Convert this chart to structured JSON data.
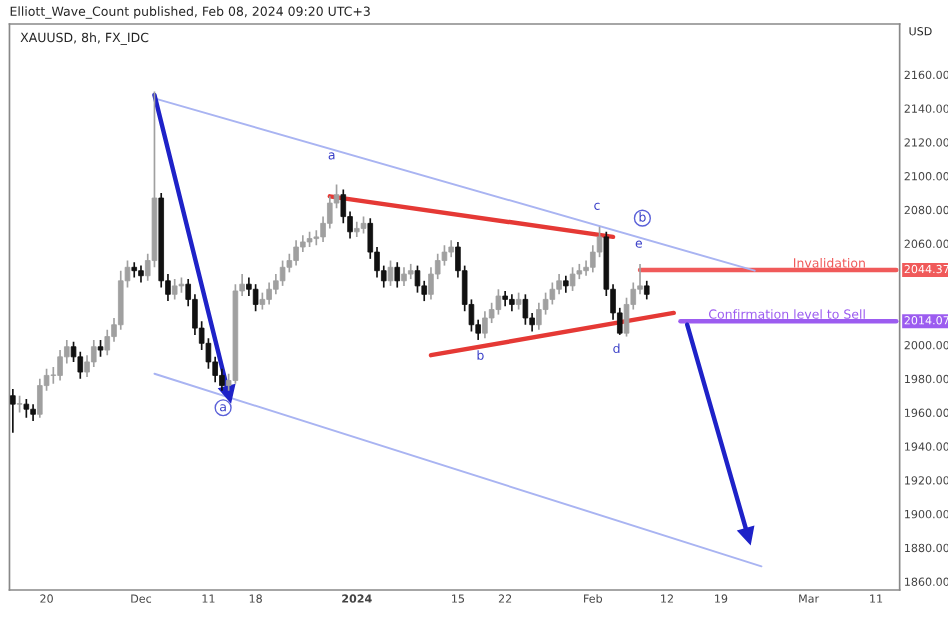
{
  "chart_data": {
    "type": "candlestick",
    "title": "XAUUSD, 8h, FX_IDC",
    "ylabel": "USD",
    "categories": [
      null,
      null,
      null,
      null,
      null,
      "20",
      null,
      null,
      null,
      null,
      null,
      null,
      null,
      null,
      null,
      null,
      null,
      null,
      null,
      "Dec",
      null,
      null,
      null,
      null,
      null,
      null,
      null,
      null,
      null,
      "11",
      null,
      null,
      null,
      null,
      null,
      null,
      "18",
      null,
      null,
      null,
      null,
      null,
      null,
      null,
      null,
      null,
      null,
      null,
      null,
      null,
      null,
      "2024",
      null,
      null,
      null,
      null,
      null,
      null,
      null,
      null,
      null,
      null,
      null,
      null,
      null,
      null,
      "15",
      null,
      null,
      null,
      null,
      null,
      null,
      "22",
      null,
      null,
      null,
      null,
      null,
      null,
      null,
      null,
      null,
      null,
      null,
      null,
      "Feb",
      null,
      null,
      null,
      null,
      null,
      null,
      null,
      null,
      null,
      null,
      "12",
      null,
      null,
      null,
      null,
      null,
      null,
      null,
      "19",
      null,
      null,
      null,
      null,
      null,
      null,
      null,
      null,
      null,
      null,
      null,
      null,
      "Mar",
      null,
      null,
      null,
      null,
      null,
      null,
      null,
      null,
      null,
      "11",
      null,
      null,
      null
    ],
    "ohlc": [
      [
        1970,
        1974,
        1948,
        1965
      ],
      [
        1965,
        1970,
        1960,
        1965
      ],
      [
        1965,
        1968,
        1957,
        1962
      ],
      [
        1962,
        1965,
        1955,
        1959
      ],
      [
        1959,
        1980,
        1957,
        1976
      ],
      [
        1976,
        1986,
        1973,
        1982
      ],
      [
        1982,
        1987,
        1977,
        1982
      ],
      [
        1982,
        1997,
        1979,
        1993
      ],
      [
        1993,
        2003,
        1989,
        1999
      ],
      [
        1999,
        2002,
        1990,
        1993
      ],
      [
        1993,
        1996,
        1980,
        1984
      ],
      [
        1984,
        1994,
        1981,
        1990
      ],
      [
        1990,
        2003,
        1987,
        1999
      ],
      [
        1999,
        2003,
        1993,
        1997
      ],
      [
        1997,
        2009,
        1994,
        2005
      ],
      [
        2005,
        2016,
        2002,
        2012
      ],
      [
        2012,
        2044,
        2009,
        2038
      ],
      [
        2038,
        2050,
        2034,
        2046
      ],
      [
        2046,
        2049,
        2040,
        2044
      ],
      [
        2044,
        2047,
        2037,
        2041
      ],
      [
        2041,
        2054,
        2038,
        2050
      ],
      [
        2050,
        2150,
        2046,
        2087
      ],
      [
        2087,
        2090,
        2034,
        2038
      ],
      [
        2038,
        2042,
        2026,
        2030
      ],
      [
        2030,
        2039,
        2027,
        2035
      ],
      [
        2035,
        2040,
        2031,
        2036
      ],
      [
        2036,
        2039,
        2023,
        2027
      ],
      [
        2027,
        2030,
        2006,
        2010
      ],
      [
        2010,
        2014,
        1997,
        2001
      ],
      [
        2001,
        2004,
        1986,
        1990
      ],
      [
        1990,
        1993,
        1978,
        1982
      ],
      [
        1982,
        1986,
        1973,
        1976
      ],
      [
        1976,
        1983,
        1973,
        1979
      ],
      [
        1979,
        2036,
        1977,
        2032
      ],
      [
        2032,
        2042,
        2029,
        2036
      ],
      [
        2036,
        2040,
        2029,
        2033
      ],
      [
        2033,
        2036,
        2020,
        2024
      ],
      [
        2024,
        2031,
        2021,
        2027
      ],
      [
        2027,
        2037,
        2024,
        2033
      ],
      [
        2033,
        2042,
        2030,
        2038
      ],
      [
        2038,
        2050,
        2035,
        2046
      ],
      [
        2046,
        2054,
        2043,
        2050
      ],
      [
        2050,
        2062,
        2047,
        2058
      ],
      [
        2058,
        2065,
        2055,
        2061
      ],
      [
        2061,
        2067,
        2058,
        2063
      ],
      [
        2063,
        2068,
        2059,
        2064
      ],
      [
        2064,
        2076,
        2061,
        2072
      ],
      [
        2072,
        2088,
        2069,
        2084
      ],
      [
        2084,
        2095,
        2081,
        2089
      ],
      [
        2089,
        2092,
        2072,
        2076
      ],
      [
        2076,
        2079,
        2063,
        2067
      ],
      [
        2067,
        2073,
        2064,
        2069
      ],
      [
        2069,
        2076,
        2066,
        2072
      ],
      [
        2072,
        2075,
        2051,
        2055
      ],
      [
        2055,
        2058,
        2040,
        2044
      ],
      [
        2044,
        2047,
        2034,
        2038
      ],
      [
        2038,
        2050,
        2035,
        2046
      ],
      [
        2046,
        2049,
        2034,
        2038
      ],
      [
        2038,
        2046,
        2035,
        2042
      ],
      [
        2042,
        2048,
        2039,
        2044
      ],
      [
        2044,
        2047,
        2031,
        2035
      ],
      [
        2035,
        2038,
        2026,
        2030
      ],
      [
        2030,
        2046,
        2027,
        2042
      ],
      [
        2042,
        2054,
        2039,
        2050
      ],
      [
        2050,
        2059,
        2047,
        2055
      ],
      [
        2055,
        2062,
        2052,
        2058
      ],
      [
        2058,
        2061,
        2040,
        2044
      ],
      [
        2044,
        2047,
        2020,
        2024
      ],
      [
        2024,
        2027,
        2008,
        2012
      ],
      [
        2012,
        2015,
        2003,
        2007
      ],
      [
        2007,
        2020,
        2004,
        2016
      ],
      [
        2016,
        2025,
        2013,
        2021
      ],
      [
        2021,
        2033,
        2018,
        2029
      ],
      [
        2029,
        2032,
        2023,
        2027
      ],
      [
        2027,
        2030,
        2020,
        2024
      ],
      [
        2024,
        2031,
        2021,
        2027
      ],
      [
        2027,
        2030,
        2012,
        2016
      ],
      [
        2016,
        2019,
        2008,
        2012
      ],
      [
        2012,
        2025,
        2009,
        2021
      ],
      [
        2021,
        2031,
        2018,
        2027
      ],
      [
        2027,
        2037,
        2024,
        2033
      ],
      [
        2033,
        2042,
        2030,
        2038
      ],
      [
        2038,
        2041,
        2031,
        2035
      ],
      [
        2035,
        2046,
        2032,
        2042
      ],
      [
        2042,
        2048,
        2039,
        2044
      ],
      [
        2044,
        2050,
        2041,
        2046
      ],
      [
        2046,
        2059,
        2043,
        2055
      ],
      [
        2055,
        2070,
        2052,
        2064
      ],
      [
        2064,
        2067,
        2029,
        2033
      ],
      [
        2033,
        2036,
        2015,
        2019
      ],
      [
        2019,
        2022,
        2006,
        2007
      ],
      [
        2007,
        2028,
        2005,
        2024
      ],
      [
        2024,
        2037,
        2021,
        2033
      ],
      [
        2033,
        2048,
        2030,
        2035
      ],
      [
        2035,
        2038,
        2027,
        2030
      ],
      null,
      null,
      null,
      null,
      null,
      null,
      null,
      null,
      null,
      null,
      null,
      null,
      null,
      null,
      null,
      null,
      null,
      null,
      null,
      null,
      null,
      null,
      null,
      null,
      null,
      null,
      null,
      null,
      null,
      null,
      null,
      null,
      null,
      null,
      null,
      null,
      null
    ],
    "series": [
      {
        "type": "line",
        "color": "#a9b4f2",
        "values": [
          null,
          null,
          null,
          null,
          null,
          null,
          null,
          null,
          null,
          null,
          null,
          null,
          null,
          null,
          null,
          null,
          null,
          null,
          null,
          null,
          null,
          2146,
          null,
          null,
          null,
          null,
          null,
          null,
          null,
          null,
          null,
          null,
          null,
          null,
          null,
          null,
          null,
          null,
          null,
          null,
          null,
          null,
          null,
          null,
          null,
          null,
          null,
          null,
          null,
          null,
          null,
          null,
          null,
          null,
          null,
          null,
          null,
          null,
          null,
          null,
          null,
          null,
          null,
          null,
          null,
          null,
          null,
          null,
          null,
          null,
          null,
          null,
          null,
          null,
          null,
          null,
          null,
          null,
          null,
          null,
          null,
          null,
          null,
          null,
          null,
          null,
          null,
          null,
          null,
          null,
          null,
          null,
          null,
          null,
          null,
          null,
          null,
          null,
          null,
          null,
          null,
          null,
          null,
          null,
          null,
          null,
          null,
          null,
          null,
          null,
          2044,
          null,
          null,
          null,
          null,
          null,
          null,
          null,
          null,
          null,
          null,
          null,
          null,
          null,
          null,
          null,
          null,
          null,
          null,
          null,
          null,
          null
        ]
      },
      {
        "type": "line",
        "color": "#a9b4f2",
        "values": [
          null,
          null,
          null,
          null,
          null,
          null,
          null,
          null,
          null,
          null,
          null,
          null,
          null,
          null,
          null,
          null,
          null,
          null,
          null,
          null,
          null,
          1983,
          null,
          null,
          null,
          null,
          null,
          null,
          null,
          null,
          null,
          null,
          null,
          null,
          null,
          null,
          null,
          null,
          null,
          null,
          null,
          null,
          null,
          null,
          null,
          null,
          null,
          null,
          null,
          null,
          null,
          null,
          null,
          null,
          null,
          null,
          null,
          null,
          null,
          null,
          null,
          null,
          null,
          null,
          null,
          null,
          null,
          null,
          null,
          null,
          null,
          null,
          null,
          null,
          null,
          null,
          null,
          null,
          null,
          null,
          null,
          null,
          null,
          null,
          null,
          null,
          null,
          null,
          null,
          null,
          null,
          null,
          null,
          null,
          null,
          null,
          null,
          null,
          null,
          null,
          null,
          null,
          null,
          null,
          null,
          null,
          null,
          null,
          null,
          null,
          null,
          1869,
          null,
          null,
          null,
          null,
          null,
          null,
          null,
          null,
          null,
          null,
          null,
          null,
          null,
          null,
          null,
          null,
          null,
          null,
          null,
          null
        ]
      },
      {
        "type": "line",
        "color": "#e53935",
        "values": [
          null,
          null,
          null,
          null,
          null,
          null,
          null,
          null,
          null,
          null,
          null,
          null,
          null,
          null,
          null,
          null,
          null,
          null,
          null,
          null,
          null,
          null,
          null,
          null,
          null,
          null,
          null,
          null,
          null,
          null,
          null,
          null,
          null,
          null,
          null,
          null,
          null,
          null,
          null,
          null,
          null,
          null,
          null,
          null,
          null,
          null,
          null,
          2088,
          null,
          null,
          null,
          null,
          null,
          null,
          null,
          null,
          null,
          null,
          null,
          null,
          null,
          null,
          null,
          null,
          null,
          null,
          null,
          null,
          null,
          null,
          null,
          null,
          null,
          null,
          null,
          null,
          null,
          null,
          null,
          null,
          null,
          null,
          null,
          null,
          null,
          null,
          null,
          null,
          null,
          2064,
          null,
          null,
          null,
          null,
          null,
          null,
          null,
          null,
          null,
          null,
          null,
          null,
          null,
          null,
          null,
          null,
          null,
          null,
          null,
          null,
          null,
          null,
          null,
          null,
          null,
          null,
          null,
          null,
          null,
          null,
          null,
          null,
          null,
          null,
          null,
          null,
          null,
          null,
          null,
          null,
          null,
          null
        ]
      },
      {
        "type": "line",
        "color": "#e53935",
        "values": [
          null,
          null,
          null,
          null,
          null,
          null,
          null,
          null,
          null,
          null,
          null,
          null,
          null,
          null,
          null,
          null,
          null,
          null,
          null,
          null,
          null,
          null,
          null,
          null,
          null,
          null,
          null,
          null,
          null,
          null,
          null,
          null,
          null,
          null,
          null,
          null,
          null,
          null,
          null,
          null,
          null,
          null,
          null,
          null,
          null,
          null,
          null,
          null,
          null,
          null,
          null,
          null,
          null,
          null,
          null,
          null,
          null,
          null,
          null,
          null,
          null,
          null,
          1994,
          null,
          null,
          null,
          null,
          null,
          null,
          null,
          null,
          null,
          null,
          null,
          null,
          null,
          null,
          null,
          null,
          null,
          null,
          null,
          null,
          null,
          null,
          null,
          null,
          null,
          null,
          null,
          null,
          null,
          null,
          null,
          null,
          null,
          null,
          null,
          2019,
          null,
          null,
          null,
          null,
          null,
          null,
          null,
          null,
          null,
          null,
          null,
          null,
          null,
          null,
          null,
          null,
          null,
          null,
          null,
          null,
          null,
          null,
          null,
          null,
          null,
          null,
          null,
          null,
          null,
          null,
          null,
          null,
          null
        ]
      },
      {
        "type": "line",
        "marker": "triangle",
        "color": "#1e22c8",
        "values": [
          null,
          null,
          null,
          null,
          null,
          null,
          null,
          null,
          null,
          null,
          null,
          null,
          null,
          null,
          null,
          null,
          null,
          null,
          null,
          null,
          null,
          2148,
          null,
          null,
          null,
          null,
          null,
          null,
          null,
          null,
          null,
          null,
          1971,
          null,
          null,
          null,
          null,
          null,
          null,
          null,
          null,
          null,
          null,
          null,
          null,
          null,
          null,
          null,
          null,
          null,
          null,
          null,
          null,
          null,
          null,
          null,
          null,
          null,
          null,
          null,
          null,
          null,
          null,
          null,
          null,
          null,
          null,
          null,
          null,
          null,
          null,
          null,
          null,
          null,
          null,
          null,
          null,
          null,
          null,
          null,
          null,
          null,
          null,
          null,
          null,
          null,
          null,
          null,
          null,
          null,
          null,
          null,
          null,
          null,
          null,
          null,
          null,
          null,
          null,
          null,
          null,
          null,
          null,
          null,
          null,
          null,
          null,
          null,
          null,
          null,
          null,
          null,
          null,
          null,
          null,
          null,
          null,
          null,
          null,
          null,
          null,
          null,
          null,
          null,
          null,
          null,
          null,
          null,
          null,
          null,
          null,
          null
        ]
      },
      {
        "type": "line",
        "marker": "triangle",
        "color": "#1e22c8",
        "values": [
          null,
          null,
          null,
          null,
          null,
          null,
          null,
          null,
          null,
          null,
          null,
          null,
          null,
          null,
          null,
          null,
          null,
          null,
          null,
          null,
          null,
          null,
          null,
          null,
          null,
          null,
          null,
          null,
          null,
          null,
          null,
          null,
          null,
          null,
          null,
          null,
          null,
          null,
          null,
          null,
          null,
          null,
          null,
          null,
          null,
          null,
          null,
          null,
          null,
          null,
          null,
          null,
          null,
          null,
          null,
          null,
          null,
          null,
          null,
          null,
          null,
          null,
          null,
          null,
          null,
          null,
          null,
          null,
          null,
          null,
          null,
          null,
          null,
          null,
          null,
          null,
          null,
          null,
          null,
          null,
          null,
          null,
          null,
          null,
          null,
          null,
          null,
          null,
          null,
          null,
          null,
          null,
          null,
          null,
          null,
          null,
          null,
          null,
          null,
          null,
          2012,
          null,
          null,
          null,
          null,
          null,
          null,
          null,
          null,
          1887,
          null,
          null,
          null,
          null,
          null,
          null,
          null,
          null,
          null,
          null,
          null,
          null,
          null,
          null,
          null,
          null,
          null,
          null,
          null,
          null,
          null,
          null
        ]
      },
      {
        "type": "line",
        "name": "Invalidation",
        "color": "#f05a5a",
        "values": [
          null,
          null,
          null,
          null,
          null,
          null,
          null,
          null,
          null,
          null,
          null,
          null,
          null,
          null,
          null,
          null,
          null,
          null,
          null,
          null,
          null,
          null,
          null,
          null,
          null,
          null,
          null,
          null,
          null,
          null,
          null,
          null,
          null,
          null,
          null,
          null,
          null,
          null,
          null,
          null,
          null,
          null,
          null,
          null,
          null,
          null,
          null,
          null,
          null,
          null,
          null,
          null,
          null,
          null,
          null,
          null,
          null,
          null,
          null,
          null,
          null,
          null,
          null,
          null,
          null,
          null,
          null,
          null,
          null,
          null,
          null,
          null,
          null,
          null,
          null,
          null,
          null,
          null,
          null,
          null,
          null,
          null,
          null,
          null,
          null,
          null,
          null,
          null,
          null,
          null,
          null,
          null,
          null,
          2044.37,
          null,
          null,
          null,
          null,
          null,
          null,
          null,
          null,
          null,
          null,
          null,
          null,
          null,
          null,
          null,
          null,
          null,
          null,
          null,
          null,
          null,
          null,
          null,
          null,
          null,
          null,
          null,
          null,
          null,
          null,
          null,
          null,
          null,
          null,
          null,
          null,
          null,
          2044.37
        ]
      },
      {
        "type": "line",
        "name": "Confirmation level to Sell",
        "color": "#9c5cf0",
        "values": [
          null,
          null,
          null,
          null,
          null,
          null,
          null,
          null,
          null,
          null,
          null,
          null,
          null,
          null,
          null,
          null,
          null,
          null,
          null,
          null,
          null,
          null,
          null,
          null,
          null,
          null,
          null,
          null,
          null,
          null,
          null,
          null,
          null,
          null,
          null,
          null,
          null,
          null,
          null,
          null,
          null,
          null,
          null,
          null,
          null,
          null,
          null,
          null,
          null,
          null,
          null,
          null,
          null,
          null,
          null,
          null,
          null,
          null,
          null,
          null,
          null,
          null,
          null,
          null,
          null,
          null,
          null,
          null,
          null,
          null,
          null,
          null,
          null,
          null,
          null,
          null,
          null,
          null,
          null,
          null,
          null,
          null,
          null,
          null,
          null,
          null,
          null,
          null,
          null,
          null,
          null,
          null,
          null,
          null,
          null,
          null,
          null,
          null,
          null,
          2014.07,
          null,
          null,
          null,
          null,
          null,
          null,
          null,
          null,
          null,
          null,
          null,
          null,
          null,
          null,
          null,
          null,
          null,
          null,
          null,
          null,
          null,
          null,
          null,
          null,
          null,
          null,
          null,
          null,
          null,
          null,
          null,
          2014.07
        ]
      }
    ],
    "ylim": [
      1855,
      2190
    ],
    "yticks": [
      {
        "value": 1860,
        "label": "1860.00"
      },
      {
        "value": 1880,
        "label": "1880.00"
      },
      {
        "value": 1900,
        "label": "1900.00"
      },
      {
        "value": 1920,
        "label": "1920.00"
      },
      {
        "value": 1940,
        "label": "1940.00"
      },
      {
        "value": 1960,
        "label": "1960.00"
      },
      {
        "value": 1980,
        "label": "1980.00"
      },
      {
        "value": 2000,
        "label": "2000.00"
      },
      {
        "value": 2060,
        "label": "2060.00"
      },
      {
        "value": 2080,
        "label": "2080.00"
      },
      {
        "value": 2100,
        "label": "2100.00"
      },
      {
        "value": 2120,
        "label": "2120.00"
      },
      {
        "value": 2140,
        "label": "2140.00"
      },
      {
        "value": 2160,
        "label": "2160.00"
      }
    ],
    "annotations": [
      "Elliott_Wave_Count published, Feb 08, 2024 09:20 UTC+3",
      "a",
      "b",
      "c",
      "d",
      "e",
      "a",
      "b",
      "2044.37",
      "2014.07"
    ],
    "grid": false
  }
}
